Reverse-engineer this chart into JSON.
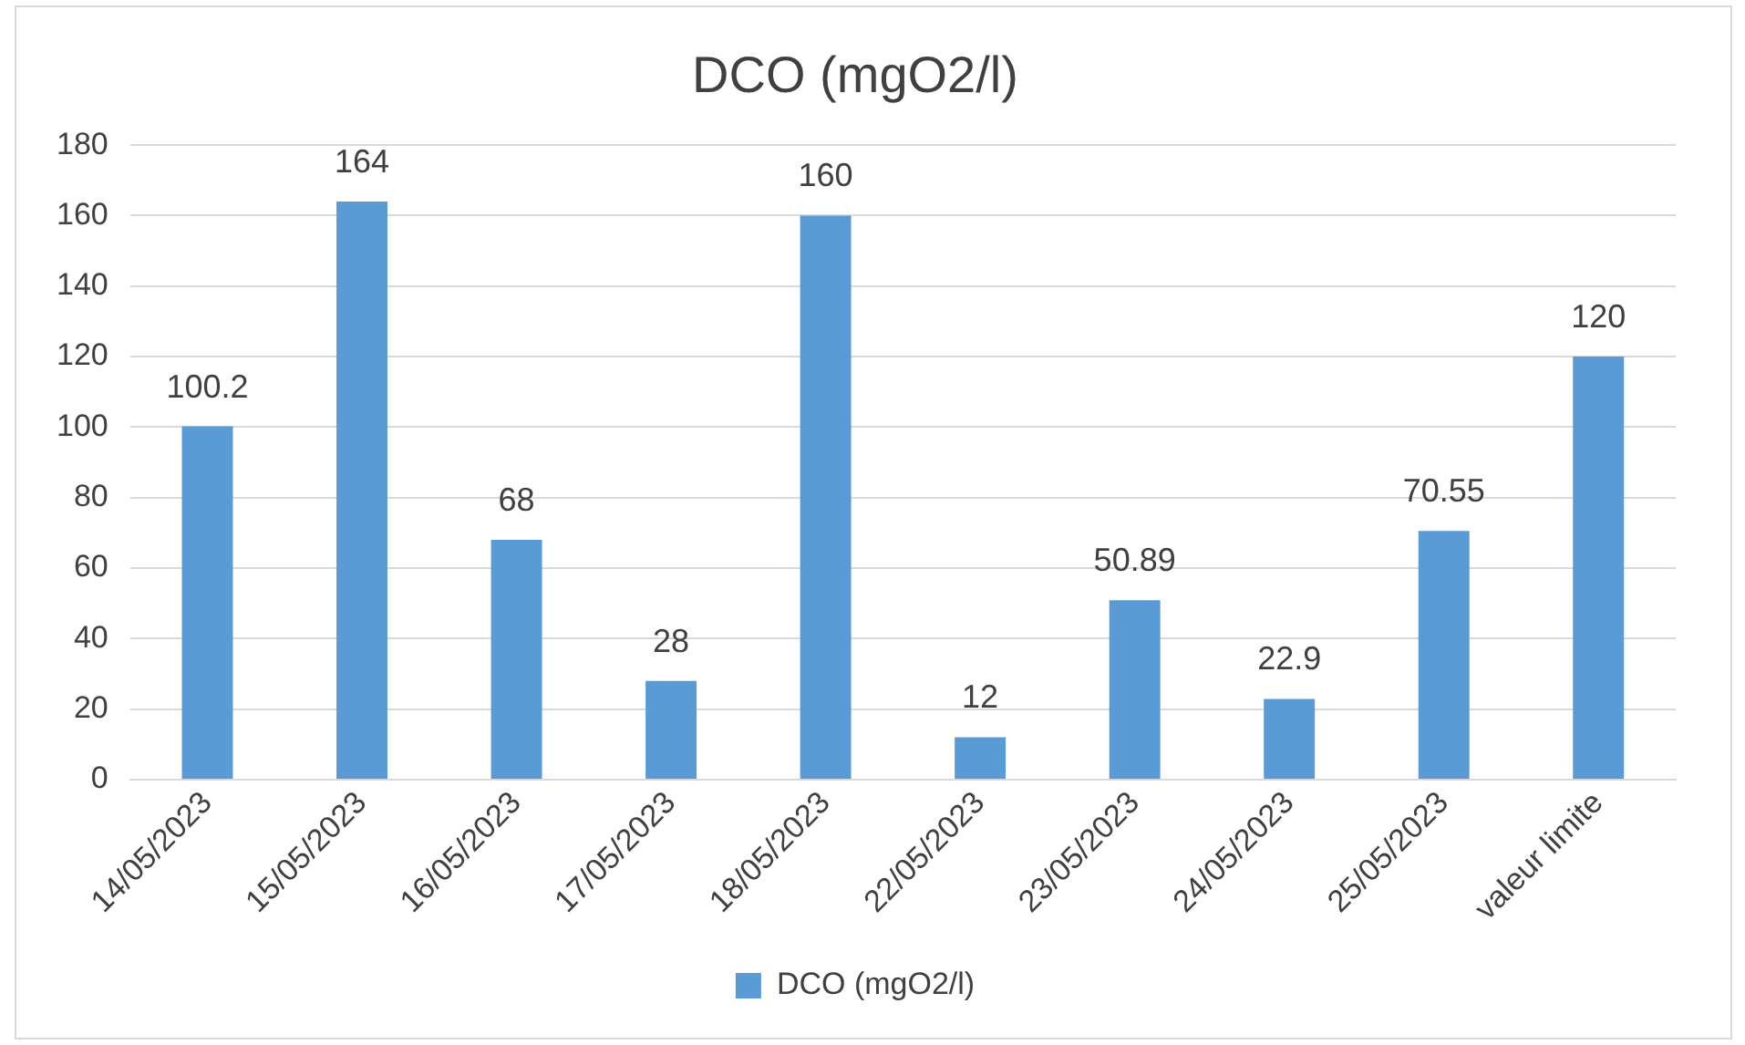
{
  "chart_data": {
    "type": "bar",
    "title": "DCO (mgO2/l)",
    "categories": [
      "14/05/2023",
      "15/05/2023",
      "16/05/2023",
      "17/05/2023",
      "18/05/2023",
      "22/05/2023",
      "23/05/2023",
      "24/05/2023",
      "25/05/2023",
      "valeur limite"
    ],
    "series": [
      {
        "name": "DCO (mgO2/l)",
        "color": "#5b9bd5",
        "values": [
          100.2,
          164,
          68,
          28,
          160,
          12,
          50.89,
          22.9,
          70.55,
          120
        ]
      }
    ],
    "ylim": [
      0,
      180
    ],
    "yticks": [
      0,
      20,
      40,
      60,
      80,
      100,
      120,
      140,
      160,
      180
    ],
    "grid": "y",
    "legend": "bottom",
    "data_labels": true
  }
}
